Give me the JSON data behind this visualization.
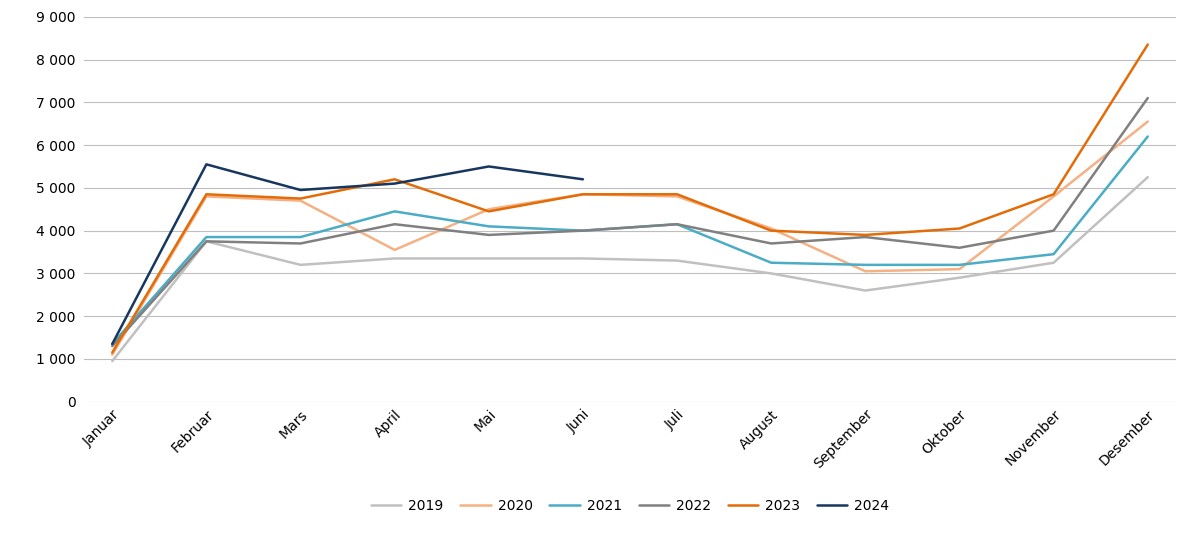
{
  "months": [
    "Januar",
    "Februar",
    "Mars",
    "April",
    "Mai",
    "Juni",
    "Juli",
    "August",
    "September",
    "Oktober",
    "November",
    "Desember"
  ],
  "series": {
    "2019": [
      950,
      3750,
      3200,
      3350,
      3350,
      3350,
      3300,
      3000,
      2600,
      2900,
      3250,
      5250
    ],
    "2020": [
      1100,
      4800,
      4700,
      3550,
      4500,
      4850,
      4800,
      4050,
      3050,
      3100,
      4800,
      6550
    ],
    "2021": [
      1350,
      3850,
      3850,
      4450,
      4100,
      4000,
      4150,
      3250,
      3200,
      3200,
      3450,
      6200
    ],
    "2022": [
      1300,
      3750,
      3700,
      4150,
      3900,
      4000,
      4150,
      3700,
      3850,
      3600,
      4000,
      7100
    ],
    "2023": [
      1150,
      4850,
      4750,
      5200,
      4450,
      4850,
      4850,
      4000,
      3900,
      4050,
      4850,
      8350
    ],
    "2024": [
      1350,
      5550,
      4950,
      5100,
      5500,
      5200,
      null,
      null,
      null,
      null,
      null,
      null
    ]
  },
  "colors": {
    "2019": "#c0c0c0",
    "2020": "#f4b183",
    "2021": "#4bacc6",
    "2022": "#808080",
    "2023": "#e36c09",
    "2024": "#17375e"
  },
  "ylim": [
    0,
    9000
  ],
  "yticks": [
    0,
    1000,
    2000,
    3000,
    4000,
    5000,
    6000,
    7000,
    8000,
    9000
  ],
  "background_color": "#ffffff",
  "grid_color": "#bebebe",
  "legend_order": [
    "2019",
    "2020",
    "2021",
    "2022",
    "2023",
    "2024"
  ]
}
